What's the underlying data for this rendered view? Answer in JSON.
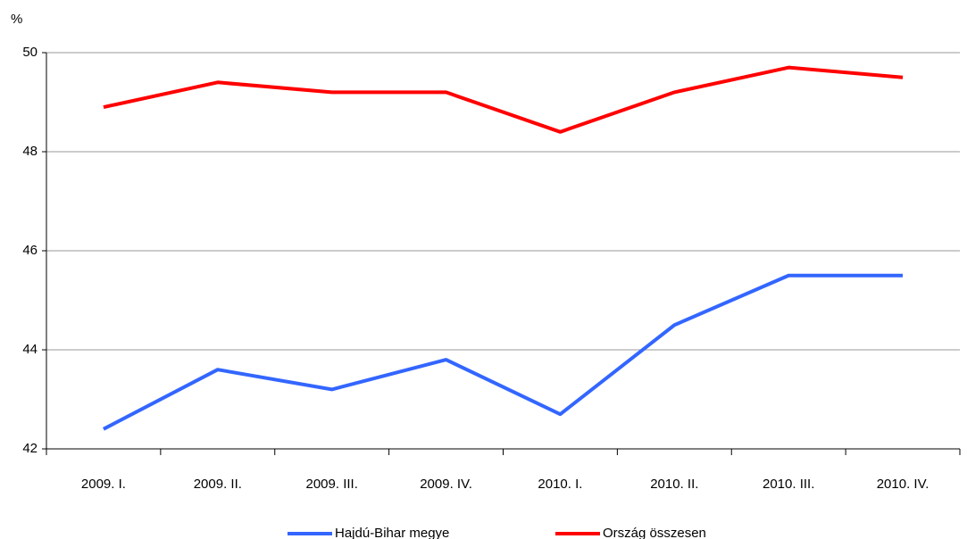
{
  "chart_data": {
    "type": "line",
    "ylabel": "%",
    "categories": [
      "2009. I.",
      "2009. II.",
      "2009. III.",
      "2009. IV.",
      "2010. I.",
      "2010. II.",
      "2010. III.",
      "2010. IV."
    ],
    "series": [
      {
        "name": "Hajdú-Bihar megye",
        "color": "#3366ff",
        "values": [
          42.4,
          43.6,
          43.2,
          43.8,
          42.7,
          44.5,
          45.5,
          45.5
        ]
      },
      {
        "name": "Ország összesen",
        "color": "#ff0000",
        "values": [
          48.9,
          49.4,
          49.2,
          49.2,
          48.4,
          49.2,
          49.7,
          49.5
        ]
      }
    ],
    "ylim": [
      42,
      50
    ],
    "yticks": [
      42,
      44,
      46,
      48,
      50
    ],
    "grid": true,
    "legend": "bottom"
  }
}
